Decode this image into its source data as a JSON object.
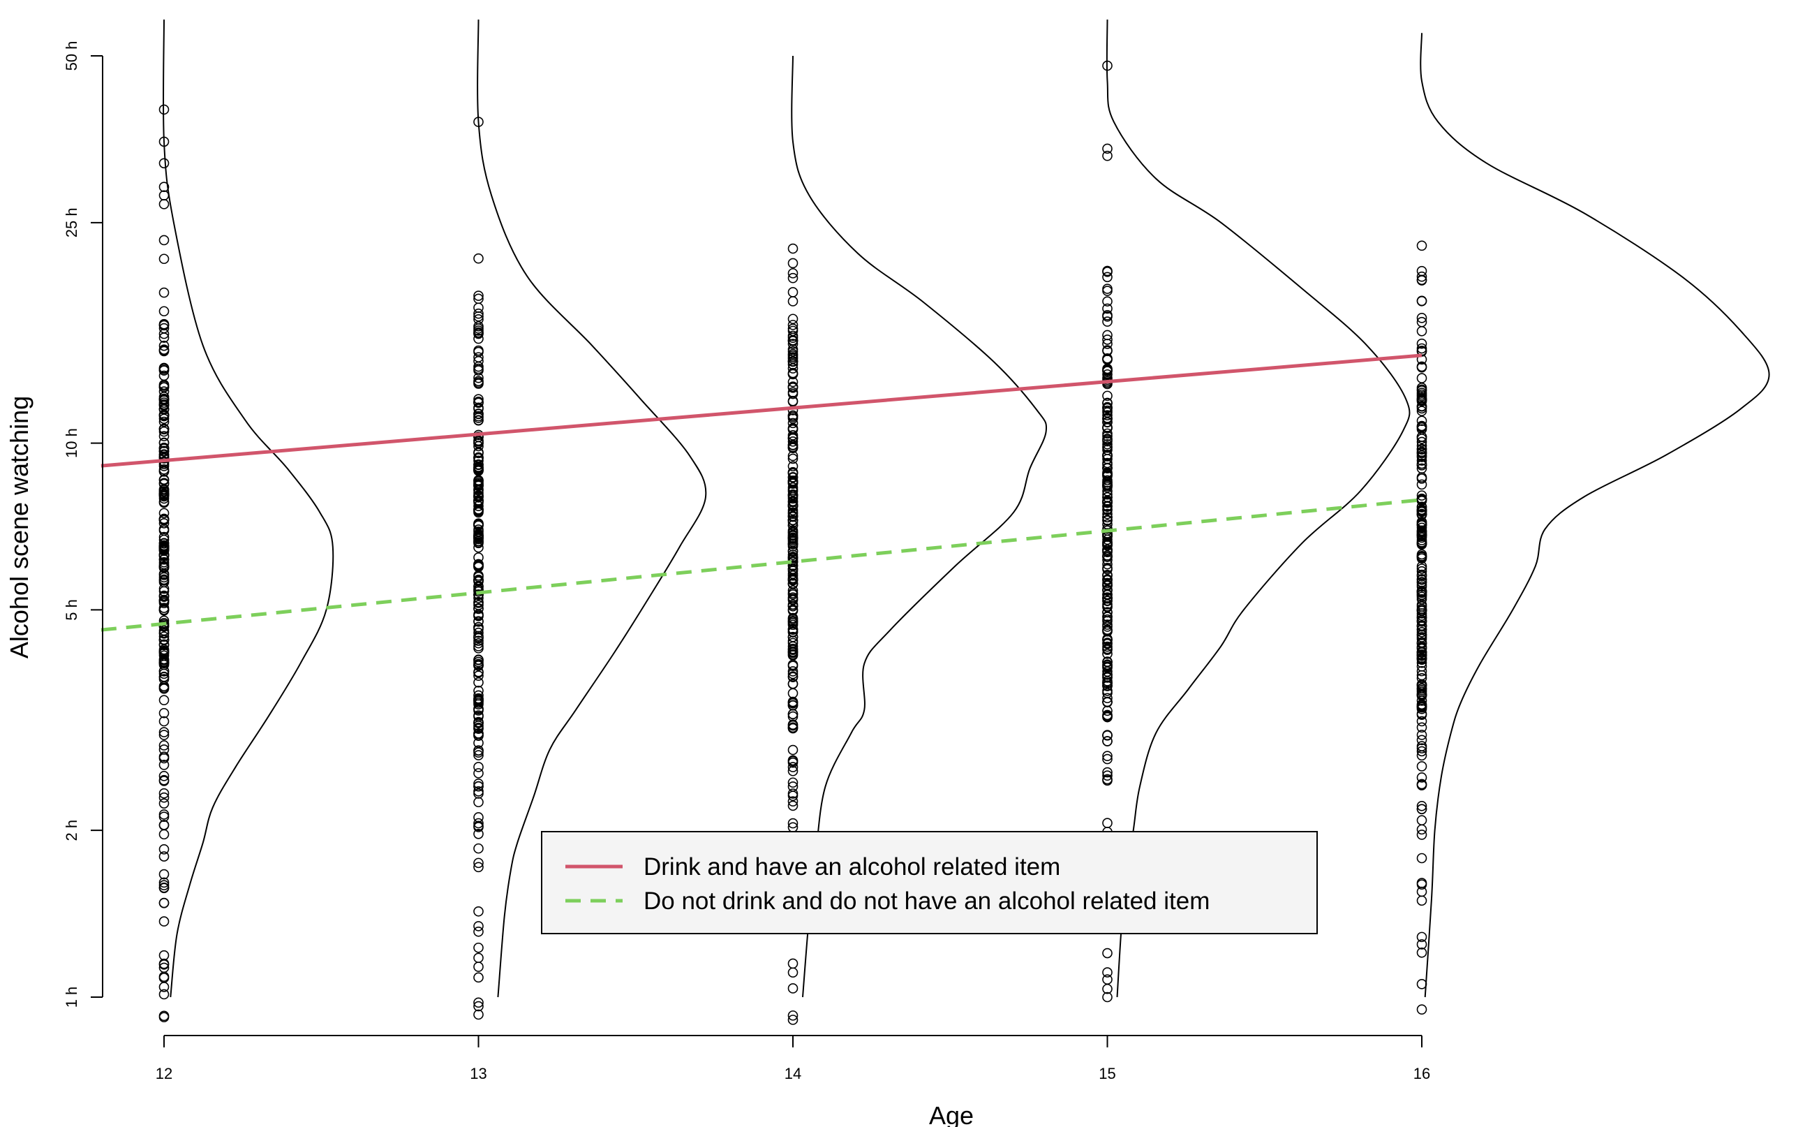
{
  "chart_data": {
    "type": "scatter",
    "title": "",
    "xlabel": "Age",
    "ylabel": "Alcohol scene watching",
    "x_ticks": [
      {
        "value": 12,
        "label": "12"
      },
      {
        "value": 13,
        "label": "13"
      },
      {
        "value": 14,
        "label": "14"
      },
      {
        "value": 15,
        "label": "15"
      },
      {
        "value": 16,
        "label": "16"
      }
    ],
    "y_scale": "log",
    "y_ticks": [
      {
        "value": 1,
        "label": "1 h"
      },
      {
        "value": 2,
        "label": "2 h"
      },
      {
        "value": 5,
        "label": "5 h"
      },
      {
        "value": 10,
        "label": "10 h"
      },
      {
        "value": 25,
        "label": "25 h"
      },
      {
        "value": 50,
        "label": "50 h"
      }
    ],
    "xlim": [
      11.8,
      16.3
    ],
    "ylim": [
      0.9,
      60
    ],
    "grid": false,
    "legend_position": "bottom-center",
    "series": [
      {
        "name": "Drink and have an alcohol related item",
        "kind": "line",
        "style": "solid",
        "color": "#d1556b",
        "x": [
          11.8,
          16
        ],
        "y": [
          9.1,
          14.4
        ]
      },
      {
        "name": "Do not drink and do not have an alcohol related item",
        "kind": "line",
        "style": "dashed",
        "color": "#7dcf5b",
        "x": [
          11.8,
          16
        ],
        "y": [
          4.6,
          7.9
        ]
      }
    ],
    "density_curves": [
      {
        "age": 12,
        "color": "#000000",
        "points": [
          [
            0.0,
            60
          ],
          [
            0.0,
            35
          ],
          [
            0.03,
            25
          ],
          [
            0.12,
            15
          ],
          [
            0.25,
            11
          ],
          [
            0.38,
            9
          ],
          [
            0.48,
            7.5
          ],
          [
            0.52,
            6.5
          ],
          [
            0.5,
            5
          ],
          [
            0.42,
            4
          ],
          [
            0.32,
            3.2
          ],
          [
            0.22,
            2.6
          ],
          [
            0.15,
            2.2
          ],
          [
            0.12,
            1.9
          ],
          [
            0.08,
            1.6
          ],
          [
            0.04,
            1.3
          ],
          [
            0.02,
            1.0
          ]
        ]
      },
      {
        "age": 13,
        "color": "#000000",
        "points": [
          [
            0.0,
            60
          ],
          [
            0.0,
            38
          ],
          [
            0.04,
            28
          ],
          [
            0.15,
            20
          ],
          [
            0.35,
            15
          ],
          [
            0.5,
            12
          ],
          [
            0.65,
            9.5
          ],
          [
            0.7,
            8
          ],
          [
            0.62,
            6.5
          ],
          [
            0.52,
            5.2
          ],
          [
            0.42,
            4.2
          ],
          [
            0.3,
            3.3
          ],
          [
            0.22,
            2.8
          ],
          [
            0.17,
            2.3
          ],
          [
            0.12,
            1.9
          ],
          [
            0.1,
            1.7
          ],
          [
            0.08,
            1.4
          ],
          [
            0.06,
            1.0
          ]
        ]
      },
      {
        "age": 14,
        "color": "#000000",
        "points": [
          [
            0.0,
            50
          ],
          [
            0.0,
            35
          ],
          [
            0.05,
            28
          ],
          [
            0.2,
            22
          ],
          [
            0.4,
            18
          ],
          [
            0.62,
            14
          ],
          [
            0.75,
            11.5
          ],
          [
            0.78,
            10.5
          ],
          [
            0.73,
            9
          ],
          [
            0.68,
            7.5
          ],
          [
            0.5,
            6
          ],
          [
            0.3,
            4.6
          ],
          [
            0.22,
            4.0
          ],
          [
            0.22,
            3.3
          ],
          [
            0.18,
            3.0
          ],
          [
            0.1,
            2.4
          ],
          [
            0.07,
            1.8
          ],
          [
            0.05,
            1.4
          ],
          [
            0.03,
            1.0
          ]
        ]
      },
      {
        "age": 15,
        "color": "#000000",
        "points": [
          [
            0.0,
            60
          ],
          [
            0.0,
            45
          ],
          [
            0.02,
            38
          ],
          [
            0.15,
            30
          ],
          [
            0.35,
            25
          ],
          [
            0.6,
            19
          ],
          [
            0.8,
            15
          ],
          [
            0.92,
            12
          ],
          [
            0.91,
            10.5
          ],
          [
            0.78,
            8.2
          ],
          [
            0.6,
            6.6
          ],
          [
            0.42,
            5.0
          ],
          [
            0.35,
            4.3
          ],
          [
            0.25,
            3.6
          ],
          [
            0.15,
            3.0
          ],
          [
            0.1,
            2.4
          ],
          [
            0.08,
            2.0
          ],
          [
            0.05,
            1.5
          ],
          [
            0.03,
            1.0
          ]
        ]
      },
      {
        "age": 16,
        "color": "#000000",
        "points": [
          [
            0.0,
            55
          ],
          [
            0.0,
            45
          ],
          [
            0.05,
            38
          ],
          [
            0.2,
            32
          ],
          [
            0.5,
            26
          ],
          [
            0.8,
            20
          ],
          [
            0.98,
            16
          ],
          [
            1.07,
            13.3
          ],
          [
            0.98,
            11.5
          ],
          [
            0.75,
            9.5
          ],
          [
            0.5,
            8.0
          ],
          [
            0.38,
            7.0
          ],
          [
            0.35,
            6.0
          ],
          [
            0.28,
            5.0
          ],
          [
            0.18,
            4.0
          ],
          [
            0.12,
            3.4
          ],
          [
            0.09,
            3.0
          ],
          [
            0.06,
            2.5
          ],
          [
            0.04,
            2.0
          ],
          [
            0.03,
            1.5
          ],
          [
            0.01,
            1.0
          ]
        ]
      }
    ],
    "points_by_age": [
      {
        "age": 12,
        "y_min": 0.92,
        "y_max": 40,
        "outliers": [
          40,
          35,
          32,
          29,
          28,
          27
        ]
      },
      {
        "age": 13,
        "y_min": 0.93,
        "y_max": 38,
        "outliers": [
          38
        ]
      },
      {
        "age": 14,
        "y_min": 0.91,
        "y_max": 32,
        "outliers": []
      },
      {
        "age": 15,
        "y_min": 1.0,
        "y_max": 48,
        "outliers": [
          48,
          34,
          33
        ]
      },
      {
        "age": 16,
        "y_min": 0.95,
        "y_max": 36,
        "outliers": []
      }
    ]
  }
}
